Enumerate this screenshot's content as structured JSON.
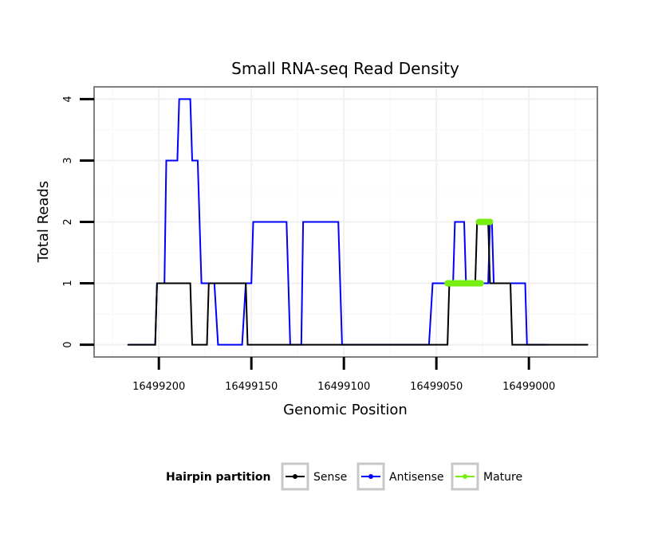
{
  "chart_data": {
    "type": "line",
    "title": "Small RNA-seq Read Density",
    "xlabel": "Genomic Position",
    "ylabel": "Total Reads",
    "x_reversed": true,
    "xlim": [
      16499235,
      16498963
    ],
    "ylim": [
      -0.2,
      4.2
    ],
    "x_ticks": [
      16499200,
      16499150,
      16499100,
      16499050,
      16499000
    ],
    "x_tick_labels": [
      "16499200",
      "16499150",
      "16499100",
      "16499050",
      "16499000"
    ],
    "y_ticks": [
      0,
      1,
      2,
      3,
      4
    ],
    "y_tick_labels": [
      "0",
      "1",
      "2",
      "3",
      "4"
    ],
    "grid": true,
    "legend": {
      "title": "Hairpin partition",
      "position": "bottom",
      "entries": [
        "Sense",
        "Antisense",
        "Mature"
      ]
    },
    "series": [
      {
        "name": "Antisense",
        "color": "#0000ff",
        "points": [
          [
            16499216,
            0
          ],
          [
            16499202,
            0
          ],
          [
            16499201,
            1
          ],
          [
            16499197,
            1
          ],
          [
            16499196,
            3
          ],
          [
            16499190,
            3
          ],
          [
            16499189,
            4
          ],
          [
            16499183,
            4
          ],
          [
            16499182,
            3
          ],
          [
            16499179,
            3
          ],
          [
            16499177,
            1
          ],
          [
            16499170,
            1
          ],
          [
            16499168,
            0
          ],
          [
            16499155,
            0
          ],
          [
            16499153,
            1
          ],
          [
            16499150,
            1
          ],
          [
            16499149,
            2
          ],
          [
            16499131,
            2
          ],
          [
            16499129,
            0
          ],
          [
            16499123,
            0
          ],
          [
            16499122,
            2
          ],
          [
            16499103,
            2
          ],
          [
            16499101,
            0
          ],
          [
            16499054,
            0
          ],
          [
            16499052,
            1
          ],
          [
            16499046,
            1
          ],
          [
            16499044,
            1
          ],
          [
            16499041,
            1
          ],
          [
            16499040,
            2
          ],
          [
            16499035,
            2
          ],
          [
            16499034,
            1
          ],
          [
            16499022,
            1
          ],
          [
            16499021,
            2
          ],
          [
            16499020,
            2
          ],
          [
            16499019,
            1
          ],
          [
            16499002,
            1
          ],
          [
            16499001,
            0
          ],
          [
            16498990,
            0
          ]
        ]
      },
      {
        "name": "Sense",
        "color": "#000000",
        "points": [
          [
            16499217,
            0
          ],
          [
            16499202,
            0
          ],
          [
            16499201,
            1
          ],
          [
            16499183,
            1
          ],
          [
            16499182,
            0
          ],
          [
            16499174,
            0
          ],
          [
            16499173,
            1
          ],
          [
            16499153,
            1
          ],
          [
            16499152,
            0
          ],
          [
            16499044,
            0
          ],
          [
            16499043,
            1
          ],
          [
            16499029,
            1
          ],
          [
            16499028,
            2
          ],
          [
            16499022,
            2
          ],
          [
            16499021,
            1
          ],
          [
            16499010,
            1
          ],
          [
            16499009,
            0
          ],
          [
            16498968,
            0
          ]
        ]
      },
      {
        "name": "Mature",
        "color": "#77ee11",
        "segments": [
          [
            [
              16499044,
              1
            ],
            [
              16499026,
              1
            ]
          ],
          [
            [
              16499027,
              2
            ],
            [
              16499021,
              2
            ]
          ]
        ]
      }
    ]
  }
}
